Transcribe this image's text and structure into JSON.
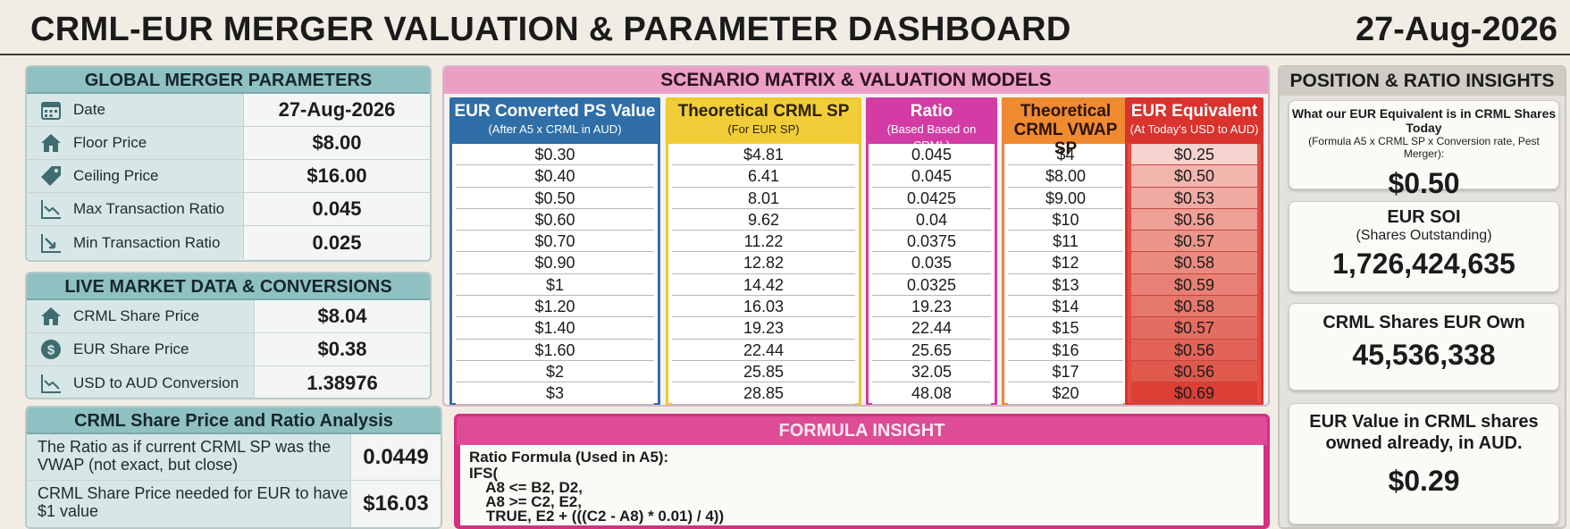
{
  "header": {
    "title": "CRML-EUR MERGER VALUATION & PARAMETER DASHBOARD",
    "date": "27-Aug-2026"
  },
  "global_params": {
    "title": "GLOBAL MERGER PARAMETERS",
    "rows": [
      {
        "icon": "calendar-icon",
        "label": "Date",
        "value": "27-Aug-2026"
      },
      {
        "icon": "house-icon",
        "label": "Floor Price",
        "value": "$8.00"
      },
      {
        "icon": "price-tag-icon",
        "label": "Ceiling Price",
        "value": "$16.00"
      },
      {
        "icon": "trend-chart-icon",
        "label": "Max Transaction Ratio",
        "value": "0.045"
      },
      {
        "icon": "down-trend-chart-icon",
        "label": "Min Transaction Ratio",
        "value": "0.025"
      }
    ]
  },
  "live_market": {
    "title": "LIVE MARKET DATA & CONVERSIONS",
    "rows": [
      {
        "icon": "house-icon",
        "label": "CRML Share Price",
        "value": "$8.04"
      },
      {
        "icon": "dollar-coin-icon",
        "label": "EUR Share Price",
        "value": "$0.38"
      },
      {
        "icon": "trend-chart-icon",
        "label": "USD to AUD Conversion",
        "value": "1.38976"
      }
    ]
  },
  "ratio_analysis": {
    "title": "CRML Share Price and Ratio Analysis",
    "rows": [
      {
        "label": "The Ratio as if current CRML SP was the VWAP (not exact, but close)",
        "value": "0.0449"
      },
      {
        "label": "CRML Share Price needed for EUR to have $1 value",
        "value": "$16.03"
      }
    ]
  },
  "matrix": {
    "title": "SCENARIO MATRIX & VALUATION MODELS",
    "columns": [
      {
        "title": "EUR Converted PS Value",
        "sub": "(After A5 x CRML in AUD)",
        "values": [
          "$0.30",
          "$0.40",
          "$0.50",
          "$0.60",
          "$0.70",
          "$0.90",
          "$1",
          "$1.20",
          "$1.40",
          "$1.60",
          "$2",
          "$3"
        ]
      },
      {
        "title": "Theoretical CRML SP",
        "sub": "(For EUR SP)",
        "values": [
          "$4.81",
          "6.41",
          "8.01",
          "9.62",
          "11.22",
          "12.82",
          "14.42",
          "16.03",
          "19.23",
          "22.44",
          "25.85",
          "28.85"
        ]
      },
      {
        "title": "Ratio",
        "sub": "(Based Based on CRML)",
        "values": [
          "0.045",
          "0.045",
          "0.0425",
          "0.04",
          "0.0375",
          "0.035",
          "0.0325",
          "19.23",
          "22.44",
          "25.65",
          "32.05",
          "48.08"
        ]
      },
      {
        "title": "Theoretical CRML VWAP SP",
        "sub": "",
        "values": [
          "$4",
          "$8.00",
          "$9.00",
          "$10",
          "$11",
          "$12",
          "$13",
          "$14",
          "$15",
          "$16",
          "$17",
          "$20"
        ]
      },
      {
        "title": "EUR Equivalent",
        "sub": "(At Today's USD to AUD)",
        "values": [
          "$0.25",
          "$0.50",
          "$0.53",
          "$0.56",
          "$0.57",
          "$0.58",
          "$0.59",
          "$0.58",
          "$0.57",
          "$0.56",
          "$0.56",
          "$0.69"
        ]
      }
    ],
    "eur_equiv_shades": [
      "#f6d3cf",
      "#f2b5ae",
      "#f0aaa2",
      "#ee9f96",
      "#ec958b",
      "#ea8b80",
      "#e88075",
      "#e6776b",
      "#e46d61",
      "#e26357",
      "#e0594d",
      "#dc3f34"
    ]
  },
  "formula": {
    "title": "FORMULA INSIGHT",
    "heading": "Ratio Formula (Used in A5):",
    "code": "IFS(\n    A8 <= B2, D2,\n    A8 >= C2, E2,\n    TRUE, E2 + (((C2 - A8) * 0.01) / 4))"
  },
  "insights": {
    "title": "POSITION & RATIO INSIGHTS",
    "cards": [
      {
        "title": "What our EUR Equivalent is in CRML Shares Today",
        "sub": "(Formula A5 x CRML SP x Conversion rate, Pest Merger):",
        "value": "$0.50"
      },
      {
        "title": "EUR SOI",
        "sub": "(Shares Outstanding)",
        "value": "1,726,424,635"
      },
      {
        "title": "CRML Shares EUR Own",
        "sub": "",
        "value": "45,536,338"
      },
      {
        "title": "EUR Value in CRML shares owned already, in AUD.",
        "sub": "",
        "value": "$0.29"
      }
    ]
  }
}
